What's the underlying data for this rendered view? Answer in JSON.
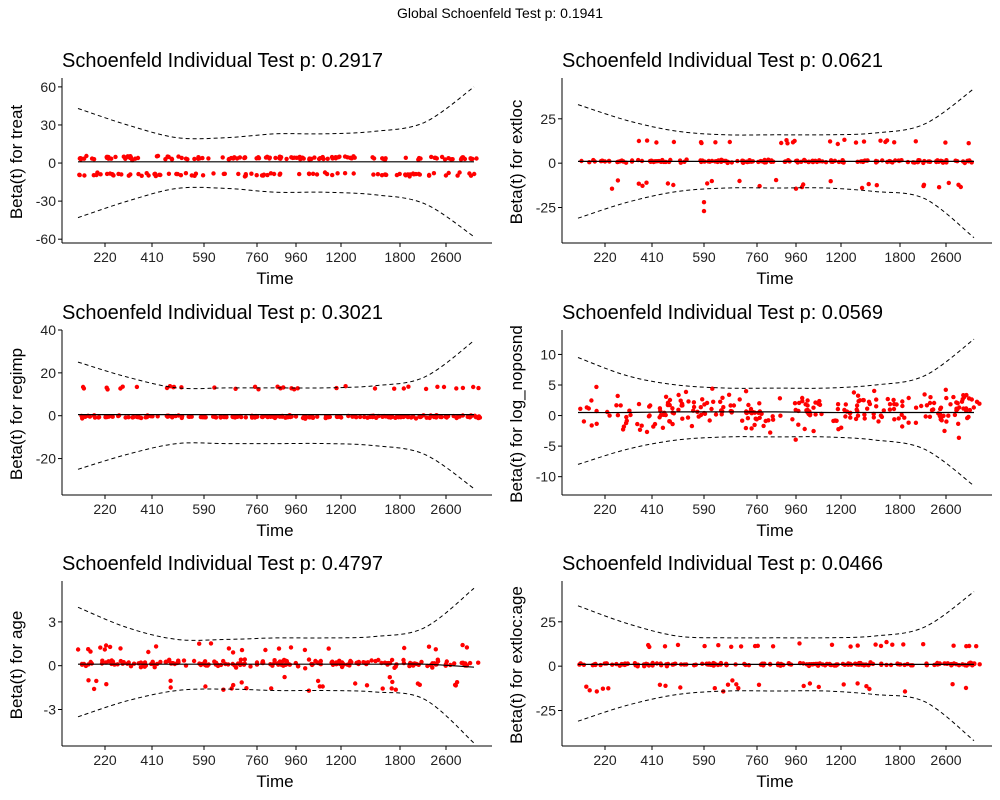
{
  "suptitle": "Global Schoenfeld Test p: 0.1941",
  "chart_data": [
    {
      "type": "scatter",
      "title": "Schoenfeld Individual Test p: 0.2917",
      "xlabel": "Time",
      "ylabel": "Beta(t) for treat",
      "x_ticks": [
        "220",
        "410",
        "590",
        "760",
        "960",
        "1200",
        "1800",
        "2600"
      ],
      "y_ticks": [
        60,
        30,
        0,
        -30,
        -60
      ],
      "ylim": [
        -63,
        67
      ],
      "point_color": "#ff0000",
      "residual_clusters": [
        {
          "level": 4,
          "spread": 1.5,
          "count": 130
        },
        {
          "level": -9,
          "spread": 1.2,
          "count": 90
        }
      ],
      "smooth_line": [
        1,
        1,
        1,
        1,
        1,
        1,
        1,
        1,
        1
      ],
      "band_upper": [
        43,
        30,
        20,
        20,
        23,
        23,
        25,
        32,
        60
      ],
      "band_lower": [
        -43,
        -30,
        -20,
        -20,
        -23,
        -23,
        -25,
        -32,
        -58
      ]
    },
    {
      "type": "scatter",
      "title": "Schoenfeld Individual Test p: 0.0621",
      "xlabel": "Time",
      "ylabel": "Beta(t) for extloc",
      "x_ticks": [
        "220",
        "410",
        "590",
        "760",
        "960",
        "1200",
        "1800",
        "2600"
      ],
      "y_ticks": [
        25,
        0,
        -25
      ],
      "ylim": [
        -45,
        48
      ],
      "point_color": "#ff0000",
      "residual_clusters": [
        {
          "level": 1,
          "spread": 0.8,
          "count": 180
        },
        {
          "level": 12,
          "spread": 1.5,
          "count": 25
        },
        {
          "level": -12,
          "spread": 3,
          "count": 25
        }
      ],
      "outliers": [
        [
          590,
          -27
        ],
        [
          590,
          -22
        ]
      ],
      "smooth_line": [
        1,
        1,
        1,
        1,
        1,
        1,
        1,
        1,
        1
      ],
      "band_upper": [
        33,
        24,
        18,
        16,
        16,
        16,
        17,
        22,
        42
      ],
      "band_lower": [
        -31,
        -22,
        -16,
        -14,
        -14,
        -14,
        -16,
        -20,
        -42
      ]
    },
    {
      "type": "scatter",
      "title": "Schoenfeld Individual Test p: 0.3021",
      "xlabel": "Time",
      "ylabel": "Beta(t) for regimp",
      "x_ticks": [
        "220",
        "410",
        "590",
        "760",
        "960",
        "1200",
        "1800",
        "2600"
      ],
      "y_ticks": [
        40,
        20,
        0,
        -20
      ],
      "ylim": [
        -37,
        40
      ],
      "point_color": "#ff0000",
      "residual_clusters": [
        {
          "level": -0.5,
          "spread": 0.6,
          "count": 200
        },
        {
          "level": 13,
          "spread": 0.8,
          "count": 35
        }
      ],
      "smooth_line": [
        0.5,
        0.5,
        0.5,
        0.5,
        0.5,
        0.5,
        0.5,
        0.5,
        0.5
      ],
      "band_upper": [
        25,
        18,
        13,
        13,
        13,
        13,
        14,
        18,
        35
      ],
      "band_lower": [
        -25,
        -18,
        -13,
        -13,
        -13,
        -13,
        -14,
        -18,
        -34
      ]
    },
    {
      "type": "scatter",
      "title": "Schoenfeld Individual Test p: 0.0569",
      "xlabel": "Time",
      "ylabel": "Beta(t) for log_noposnd",
      "x_ticks": [
        "220",
        "410",
        "590",
        "760",
        "960",
        "1200",
        "1800",
        "2600"
      ],
      "y_ticks": [
        10,
        5,
        0,
        -5,
        -10
      ],
      "ylim": [
        -13,
        14
      ],
      "point_color": "#ff0000",
      "residual_clusters": [
        {
          "level": 0.7,
          "spread": 3.2,
          "count": 260
        }
      ],
      "smooth_line": [
        0.5,
        0.5,
        0.6,
        0.6,
        0.6,
        0.5,
        0.5,
        0.5,
        0.5
      ],
      "band_upper": [
        9.5,
        6.5,
        5,
        4.5,
        4.5,
        4.5,
        5,
        6.5,
        12.5
      ],
      "band_lower": [
        -8,
        -5.5,
        -4,
        -3.5,
        -3.5,
        -3.5,
        -4,
        -5.5,
        -11.5
      ]
    },
    {
      "type": "scatter",
      "title": "Schoenfeld Individual Test p: 0.4797",
      "xlabel": "Time",
      "ylabel": "Beta(t) for age",
      "x_ticks": [
        "220",
        "410",
        "590",
        "760",
        "960",
        "1200",
        "1800",
        "2600"
      ],
      "y_ticks": [
        3,
        0,
        -3
      ],
      "ylim": [
        -5.5,
        5.8
      ],
      "point_color": "#ff0000",
      "residual_clusters": [
        {
          "level": 0.15,
          "spread": 0.25,
          "count": 200
        },
        {
          "level": 1.2,
          "spread": 0.3,
          "count": 25
        },
        {
          "level": -1.4,
          "spread": 0.5,
          "count": 30
        }
      ],
      "smooth_line": [
        0.1,
        0.1,
        0.1,
        0.1,
        0.1,
        0.1,
        0.1,
        0.1,
        -0.1
      ],
      "band_upper": [
        4,
        2.6,
        1.8,
        1.8,
        1.9,
        1.9,
        2,
        2.6,
        5.3
      ],
      "band_lower": [
        -3.5,
        -2.4,
        -1.7,
        -1.6,
        -1.7,
        -1.7,
        -1.8,
        -2.3,
        -5.3
      ]
    },
    {
      "type": "scatter",
      "title": "Schoenfeld Individual Test p: 0.0466",
      "xlabel": "Time",
      "ylabel": "Beta(t) for extloc:age",
      "x_ticks": [
        "220",
        "410",
        "590",
        "760",
        "960",
        "1200",
        "1800",
        "2600"
      ],
      "y_ticks": [
        25,
        0,
        -25
      ],
      "ylim": [
        -45,
        48
      ],
      "point_color": "#ff0000",
      "residual_clusters": [
        {
          "level": 1,
          "spread": 0.8,
          "count": 180
        },
        {
          "level": 12,
          "spread": 1.5,
          "count": 25
        },
        {
          "level": -12,
          "spread": 3,
          "count": 25
        }
      ],
      "smooth_line": [
        1,
        1,
        1,
        1,
        1,
        1,
        1,
        1,
        1
      ],
      "band_upper": [
        34,
        24,
        17,
        16,
        16,
        16,
        17,
        22,
        42
      ],
      "band_lower": [
        -31,
        -22,
        -16,
        -14,
        -14,
        -14,
        -16,
        -20,
        -42
      ]
    }
  ]
}
